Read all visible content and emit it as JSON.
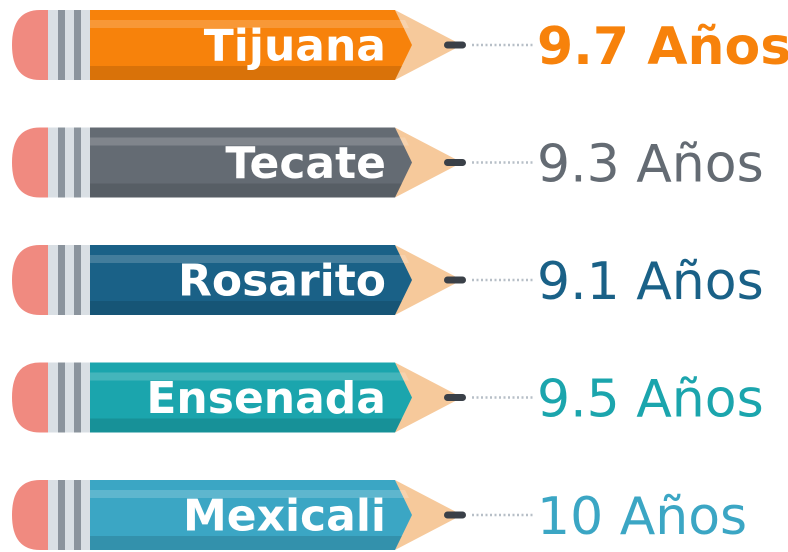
{
  "items": [
    {
      "label": "Tijuana",
      "value_label": "9.7 Años",
      "color": "#f7820b",
      "bold": true
    },
    {
      "label": "Tecate",
      "value_label": "9.3 Años",
      "color": "#646b73",
      "bold": false
    },
    {
      "label": "Rosarito",
      "value_label": "9.1 Años",
      "color": "#1a6187",
      "bold": false
    },
    {
      "label": "Ensenada",
      "value_label": "9.5 Años",
      "color": "#1ba5ad",
      "bold": false
    },
    {
      "label": "Mexicali",
      "value_label": "10 Años",
      "color": "#3ba6c4",
      "bold": false
    }
  ]
}
